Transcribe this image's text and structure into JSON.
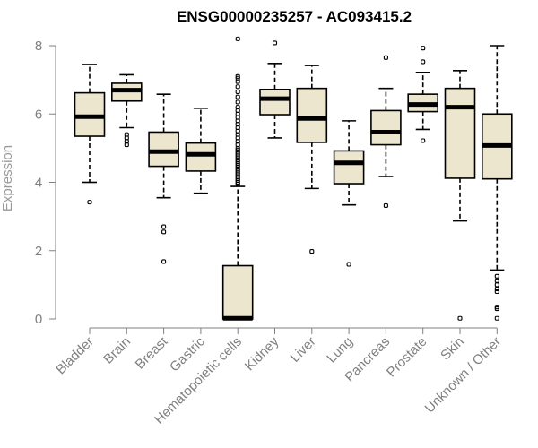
{
  "chart_data": {
    "type": "boxplot",
    "title": "ENSG00000235257 - AC093415.2",
    "xlabel": "",
    "ylabel": "Expression",
    "ylim": [
      0,
      8
    ],
    "yticks": [
      0,
      2,
      4,
      6,
      8
    ],
    "box_fill": "#ede6cf",
    "categories": [
      "Bladder",
      "Brain",
      "Breast",
      "Gastric",
      "Hematopoietic cells",
      "Kidney",
      "Liver",
      "Lung",
      "Pancreas",
      "Prostate",
      "Skin",
      "Unknown / Other"
    ],
    "boxes": [
      {
        "name": "Bladder",
        "whisker_low": 4.0,
        "q1": 5.35,
        "median": 5.92,
        "q3": 6.62,
        "whisker_high": 7.45,
        "outliers": [
          3.42
        ]
      },
      {
        "name": "Brain",
        "whisker_low": 5.6,
        "q1": 6.38,
        "median": 6.7,
        "q3": 6.9,
        "whisker_high": 7.15,
        "outliers": [
          5.4,
          5.3,
          5.2,
          5.1
        ]
      },
      {
        "name": "Breast",
        "whisker_low": 3.55,
        "q1": 4.47,
        "median": 4.9,
        "q3": 5.47,
        "whisker_high": 6.58,
        "outliers": [
          2.7,
          2.55,
          1.68
        ]
      },
      {
        "name": "Gastric",
        "whisker_low": 3.68,
        "q1": 4.33,
        "median": 4.82,
        "q3": 5.15,
        "whisker_high": 6.17,
        "outliers": []
      },
      {
        "name": "Hematopoietic cells",
        "whisker_low": 0.0,
        "q1": 0.0,
        "median": 0.02,
        "q3": 1.56,
        "whisker_high": 3.88,
        "outliers": [
          8.2,
          7.1,
          7.05,
          6.95,
          6.8,
          6.65,
          6.5,
          6.35,
          6.2,
          6.1,
          6.0,
          5.9,
          5.8,
          5.7,
          5.6,
          5.5,
          5.4,
          5.3,
          5.2,
          5.1,
          5.0,
          4.95,
          4.9,
          4.85,
          4.8,
          4.75,
          4.7,
          4.65,
          4.6,
          4.55,
          4.5,
          4.45,
          4.4,
          4.35,
          4.3,
          4.25,
          4.2,
          4.15,
          4.1,
          4.05,
          4.0,
          3.95
        ]
      },
      {
        "name": "Kidney",
        "whisker_low": 5.3,
        "q1": 5.98,
        "median": 6.45,
        "q3": 6.72,
        "whisker_high": 7.48,
        "outliers": [
          8.08
        ]
      },
      {
        "name": "Liver",
        "whisker_low": 3.82,
        "q1": 5.17,
        "median": 5.87,
        "q3": 6.75,
        "whisker_high": 7.42,
        "outliers": [
          1.98
        ]
      },
      {
        "name": "Lung",
        "whisker_low": 3.34,
        "q1": 3.96,
        "median": 4.57,
        "q3": 4.92,
        "whisker_high": 5.8,
        "outliers": [
          1.6
        ]
      },
      {
        "name": "Pancreas",
        "whisker_low": 4.17,
        "q1": 5.1,
        "median": 5.47,
        "q3": 6.1,
        "whisker_high": 6.75,
        "outliers": [
          7.65,
          3.32
        ]
      },
      {
        "name": "Prostate",
        "whisker_low": 5.55,
        "q1": 6.07,
        "median": 6.28,
        "q3": 6.58,
        "whisker_high": 7.22,
        "outliers": [
          7.93,
          7.53,
          5.22
        ]
      },
      {
        "name": "Skin",
        "whisker_low": 2.87,
        "q1": 4.12,
        "median": 6.2,
        "q3": 6.75,
        "whisker_high": 7.27,
        "outliers": [
          0.02
        ]
      },
      {
        "name": "Unknown / Other",
        "whisker_low": 1.43,
        "q1": 4.1,
        "median": 5.08,
        "q3": 6.0,
        "whisker_high": 8.0,
        "outliers": [
          1.25,
          1.12,
          1.0,
          0.88,
          0.8,
          0.35,
          0.3,
          0.02
        ]
      }
    ]
  }
}
